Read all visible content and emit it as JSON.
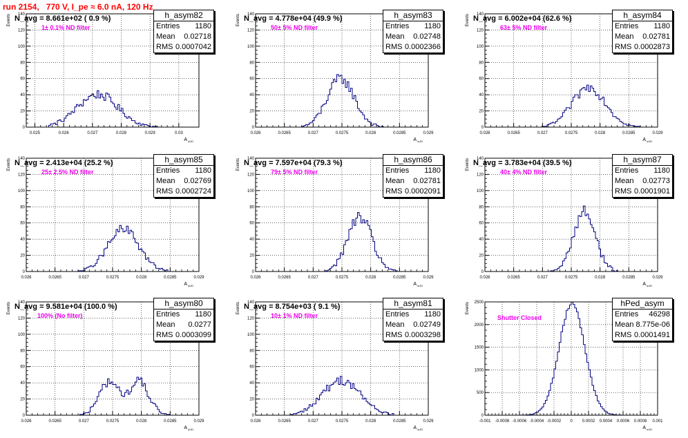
{
  "run_title": "run 2154,   770 V, I_pe ≈ 6.0 nA, 120 Hz",
  "chart_data": [
    {
      "id": "h_asym82",
      "type": "bar",
      "title": "h_asym82",
      "n_avg": "N_avg = 8.661e+02 ( 0.9 %)",
      "filter": "1± 0.1% ND filter",
      "stats": {
        "entries": "1180",
        "mean": "0.02718",
        "rms": "0.0007042"
      },
      "xlim": [
        0.0247,
        0.0307
      ],
      "ylim": [
        0,
        140
      ],
      "xticks": [
        "0.025",
        "0.026",
        "0.027",
        "0.028",
        "0.029",
        "0.03"
      ],
      "yticks": [
        "0",
        "20",
        "40",
        "60",
        "80",
        "100",
        "120",
        "140"
      ],
      "xlabel": "A_uUD",
      "ylabel": "Events",
      "gen": {
        "mu": 0.02718,
        "sigma": 0.0007042,
        "n": 1180,
        "lo": 0.0255,
        "hi": 0.0298
      }
    },
    {
      "id": "h_asym83",
      "type": "bar",
      "title": "h_asym83",
      "n_avg": "N_avg = 4.778e+04 (49.9 %)",
      "filter": "50± 5% ND filter",
      "stats": {
        "entries": "1180",
        "mean": "0.02748",
        "rms": "0.0002366"
      },
      "xlim": [
        0.026,
        0.029
      ],
      "ylim": [
        0,
        140
      ],
      "xticks": [
        "0.026",
        "0.0265",
        "0.027",
        "0.0275",
        "0.028",
        "0.0285",
        "0.029"
      ],
      "yticks": [
        "0",
        "20",
        "40",
        "60",
        "80",
        "100",
        "120",
        "140"
      ],
      "xlabel": "A_uUD",
      "ylabel": "Events",
      "gen": {
        "mu": 0.02748,
        "sigma": 0.0002366,
        "n": 1180,
        "lo": 0.0268,
        "hi": 0.0283
      }
    },
    {
      "id": "h_asym84",
      "type": "bar",
      "title": "h_asym84",
      "n_avg": "N_avg = 6.002e+04 (62.6 %)",
      "filter": "63± 5% ND filter",
      "stats": {
        "entries": "1180",
        "mean": "0.02781",
        "rms": "0.0002873"
      },
      "xlim": [
        0.026,
        0.029
      ],
      "ylim": [
        0,
        140
      ],
      "xticks": [
        "0.026",
        "0.0265",
        "0.027",
        "0.0275",
        "0.028",
        "0.0285",
        "0.029"
      ],
      "yticks": [
        "0",
        "20",
        "40",
        "60",
        "80",
        "100",
        "120",
        "140"
      ],
      "xlabel": "A_uUD",
      "ylabel": "Events",
      "gen": {
        "mu": 0.02781,
        "sigma": 0.0002873,
        "n": 1180,
        "lo": 0.027,
        "hi": 0.0287
      }
    },
    {
      "id": "h_asym85",
      "type": "bar",
      "title": "h_asym85",
      "n_avg": "N_avg = 2.413e+04 (25.2 %)",
      "filter": "25± 2.5% ND filter",
      "stats": {
        "entries": "1180",
        "mean": "0.02769",
        "rms": "0.0002724"
      },
      "xlim": [
        0.026,
        0.029
      ],
      "ylim": [
        0,
        140
      ],
      "xticks": [
        "0.026",
        "0.0265",
        "0.027",
        "0.0275",
        "0.028",
        "0.0285",
        "0.029"
      ],
      "yticks": [
        "0",
        "20",
        "40",
        "60",
        "80",
        "100",
        "120",
        "140"
      ],
      "xlabel": "A_uUD",
      "ylabel": "Events",
      "gen": {
        "mu": 0.02769,
        "sigma": 0.0002724,
        "n": 1180,
        "lo": 0.0269,
        "hi": 0.0285
      }
    },
    {
      "id": "h_asym86",
      "type": "bar",
      "title": "h_asym86",
      "n_avg": "N_avg = 7.597e+04 (79.3 %)",
      "filter": "79± 5% ND filter",
      "stats": {
        "entries": "1180",
        "mean": "0.02781",
        "rms": "0.0002091"
      },
      "xlim": [
        0.026,
        0.029
      ],
      "ylim": [
        0,
        140
      ],
      "xticks": [
        "0.026",
        "0.0265",
        "0.027",
        "0.0275",
        "0.028",
        "0.0285",
        "0.029"
      ],
      "yticks": [
        "0",
        "20",
        "40",
        "60",
        "80",
        "100",
        "120",
        "140"
      ],
      "xlabel": "A_uUD",
      "ylabel": "Events",
      "gen": {
        "mu": 0.02781,
        "sigma": 0.0002091,
        "n": 1180,
        "lo": 0.0272,
        "hi": 0.0285
      }
    },
    {
      "id": "h_asym87",
      "type": "bar",
      "title": "h_asym87",
      "n_avg": "N_avg = 3.783e+04 (39.5 %)",
      "filter": "40± 4% ND filter",
      "stats": {
        "entries": "1180",
        "mean": "0.02773",
        "rms": "0.0001901"
      },
      "xlim": [
        0.026,
        0.029
      ],
      "ylim": [
        0,
        140
      ],
      "xticks": [
        "0.026",
        "0.0265",
        "0.027",
        "0.0275",
        "0.028",
        "0.0285",
        "0.029"
      ],
      "yticks": [
        "0",
        "20",
        "40",
        "60",
        "80",
        "100",
        "120",
        "140"
      ],
      "xlabel": "A_uUD",
      "ylabel": "Events",
      "gen": {
        "mu": 0.02773,
        "sigma": 0.0001901,
        "n": 1180,
        "lo": 0.0271,
        "hi": 0.0284
      }
    },
    {
      "id": "h_asym80",
      "type": "bar",
      "title": "h_asym80",
      "n_avg": "N_avg = 9.581e+04 (100.0 %)",
      "filter": "100% (No filter)",
      "stats": {
        "entries": "1180",
        "mean": "0.0277",
        "rms": "0.0003099"
      },
      "xlim": [
        0.026,
        0.029
      ],
      "ylim": [
        0,
        140
      ],
      "xticks": [
        "0.026",
        "0.0265",
        "0.027",
        "0.0275",
        "0.028",
        "0.0285",
        "0.029"
      ],
      "yticks": [
        "0",
        "20",
        "40",
        "60",
        "80",
        "100",
        "120",
        "140"
      ],
      "xlabel": "A_uUD",
      "ylabel": "Events",
      "gen": {
        "mu": 0.0277,
        "sigma": 0.0003099,
        "n": 1180,
        "lo": 0.0269,
        "hi": 0.0285,
        "bimodal": true
      }
    },
    {
      "id": "h_asym81",
      "type": "bar",
      "title": "h_asym81",
      "n_avg": "N_avg = 8.754e+03 ( 9.1 %)",
      "filter": "10± 1% ND filter",
      "stats": {
        "entries": "1180",
        "mean": "0.02749",
        "rms": "0.0003298"
      },
      "xlim": [
        0.026,
        0.029
      ],
      "ylim": [
        0,
        140
      ],
      "xticks": [
        "0.026",
        "0.0265",
        "0.027",
        "0.0275",
        "0.028",
        "0.0285",
        "0.029"
      ],
      "yticks": [
        "0",
        "20",
        "40",
        "60",
        "80",
        "100",
        "120",
        "140"
      ],
      "xlabel": "A_uUD",
      "ylabel": "Events",
      "gen": {
        "mu": 0.02749,
        "sigma": 0.0003298,
        "n": 1180,
        "lo": 0.0266,
        "hi": 0.0284
      }
    },
    {
      "id": "hPed_asym",
      "type": "bar",
      "title": "hPed_asym",
      "n_avg": "",
      "filter": "Shutter Closed",
      "stats": {
        "entries": "46298",
        "mean": "8.775e-06",
        "rms": "0.0001491"
      },
      "xlim": [
        -0.001,
        0.001
      ],
      "ylim": [
        0,
        2500
      ],
      "xticks": [
        "-0.001",
        "-0.0008",
        "-0.0006",
        "-0.0004",
        "-0.0002",
        "0",
        "0.0002",
        "0.0004",
        "0.0006",
        "0.0008",
        "0.001"
      ],
      "yticks": [
        "0",
        "500",
        "1000",
        "1500",
        "2000",
        "2500"
      ],
      "xlabel": "A_uUD",
      "ylabel": "Events",
      "gen": {
        "mu": 8.775e-06,
        "sigma": 0.0001491,
        "n": 46298,
        "lo": -0.0006,
        "hi": 0.0006
      }
    }
  ]
}
